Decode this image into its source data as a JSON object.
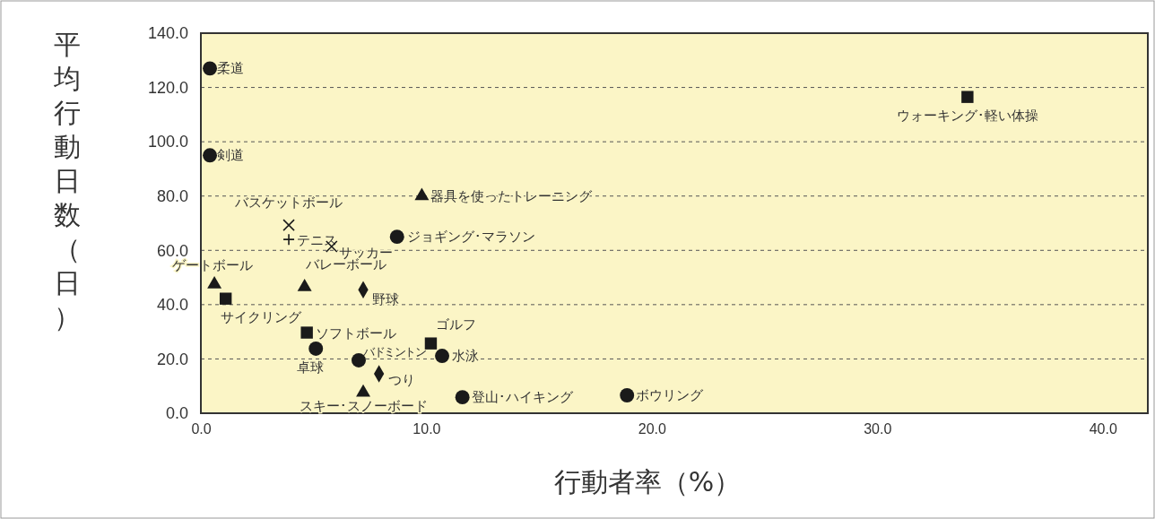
{
  "chart_data": {
    "type": "scatter",
    "xlabel": "行動者率（%）",
    "ylabel": "平均行動日数（日）",
    "xlim": [
      0,
      42
    ],
    "ylim": [
      0,
      140
    ],
    "xticks": [
      {
        "value": 0,
        "label": "0.0"
      },
      {
        "value": 10,
        "label": "10.0"
      },
      {
        "value": 20,
        "label": "20.0"
      },
      {
        "value": 30,
        "label": "30.0"
      },
      {
        "value": 40,
        "label": "40.0"
      }
    ],
    "yticks": [
      {
        "value": 0,
        "label": "0.0"
      },
      {
        "value": 20,
        "label": "20.0"
      },
      {
        "value": 40,
        "label": "40.0"
      },
      {
        "value": 60,
        "label": "60.0"
      },
      {
        "value": 80,
        "label": "80.0"
      },
      {
        "value": 100,
        "label": "100.0"
      },
      {
        "value": 120,
        "label": "120.0"
      },
      {
        "value": 140,
        "label": "140.0"
      }
    ],
    "grid": "y",
    "series": [
      {
        "color": "#1a1a1a",
        "marker": "circle",
        "x": [
          0.4,
          0.4,
          8.7,
          5.1,
          7.0,
          10.7,
          11.6,
          18.9
        ],
        "values": [
          127,
          95,
          65,
          23.8,
          19.5,
          21.1,
          5.9,
          6.6
        ]
      },
      {
        "color": "#1a1a1a",
        "marker": "square",
        "x": [
          34.0,
          1.1,
          4.7,
          10.2
        ],
        "values": [
          116.5,
          42.2,
          29.7,
          25.7
        ]
      },
      {
        "color": "#1a1a1a",
        "marker": "triangle",
        "x": [
          9.8,
          0.6,
          4.6,
          7.2
        ],
        "values": [
          80,
          47.5,
          46.5,
          7.6
        ]
      },
      {
        "color": "#1a1a1a",
        "marker": "diamond",
        "x": [
          7.2,
          7.9
        ],
        "values": [
          45.5,
          14.5
        ]
      },
      {
        "color": "#1a1a1a",
        "marker": "cross",
        "x": [
          3.9,
          5.8
        ],
        "values": [
          69.3,
          61.4
        ]
      },
      {
        "color": "#1a1a1a",
        "marker": "plus",
        "x": [
          3.9
        ],
        "values": [
          64
        ]
      }
    ],
    "annotations": [
      {
        "text": "柔道",
        "x": 0.4,
        "y": 127
      },
      {
        "text": "剣道",
        "x": 0.4,
        "y": 95
      },
      {
        "text": "ウォーキング･軽い体操",
        "x": 34.0,
        "y": 116.5
      },
      {
        "text": "器具を使ったトレーニング",
        "x": 9.8,
        "y": 80
      },
      {
        "text": "バスケットボール",
        "x": 3.9,
        "y": 69.3
      },
      {
        "text": "テニス",
        "x": 3.9,
        "y": 64
      },
      {
        "text": "サッカー",
        "x": 5.8,
        "y": 61.4
      },
      {
        "text": "ジョギング･マラソン",
        "x": 8.7,
        "y": 65
      },
      {
        "text": "ゲートボール",
        "x": 0.6,
        "y": 47.5
      },
      {
        "text": "バレーボール",
        "x": 4.6,
        "y": 46.5
      },
      {
        "text": "野球",
        "x": 7.2,
        "y": 45.5
      },
      {
        "text": "サイクリング",
        "x": 1.1,
        "y": 42.2
      },
      {
        "text": "ソフトボール",
        "x": 4.7,
        "y": 29.7
      },
      {
        "text": "卓球",
        "x": 5.1,
        "y": 23.8
      },
      {
        "text": "バドミントン",
        "x": 7.0,
        "y": 19.5
      },
      {
        "text": "ゴルフ",
        "x": 10.2,
        "y": 25.7
      },
      {
        "text": "水泳",
        "x": 10.7,
        "y": 21.1
      },
      {
        "text": "つり",
        "x": 7.9,
        "y": 14.5
      },
      {
        "text": "スキー･スノーボード",
        "x": 7.2,
        "y": 7.6
      },
      {
        "text": "登山･ハイキング",
        "x": 11.6,
        "y": 5.9
      },
      {
        "text": "ボウリング",
        "x": 18.9,
        "y": 6.6
      }
    ]
  }
}
